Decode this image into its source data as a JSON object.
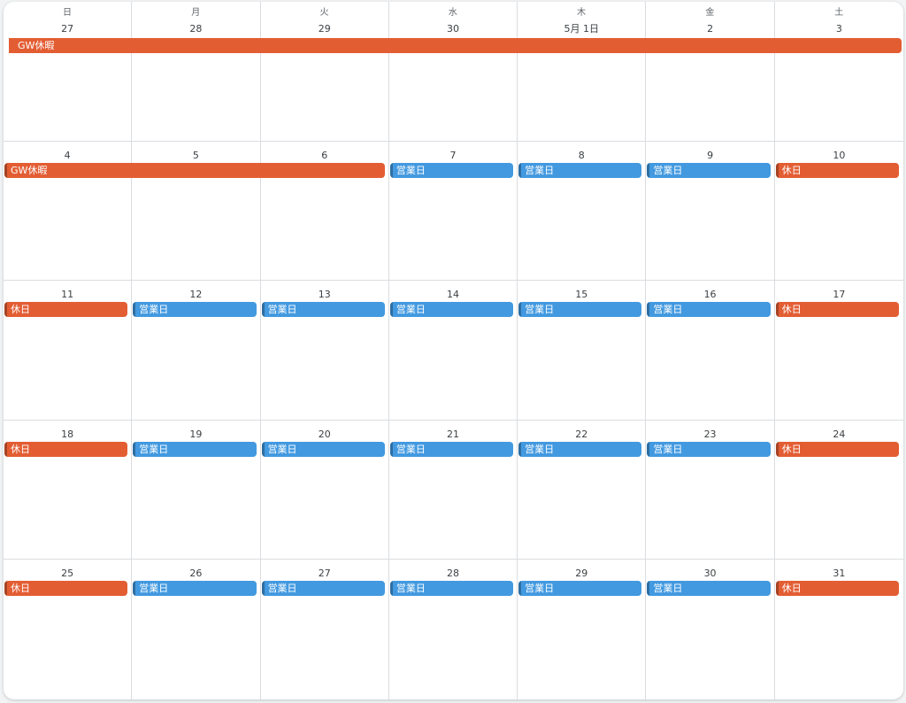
{
  "colors": {
    "holiday": "#e35d33",
    "business": "#4299e0",
    "border": "#dadce0",
    "background": "#ffffff"
  },
  "weekdays": [
    "日",
    "月",
    "火",
    "水",
    "木",
    "金",
    "土"
  ],
  "weeks": [
    {
      "days": [
        "27",
        "28",
        "29",
        "30",
        "5月 1日",
        "2",
        "3"
      ],
      "events": [
        {
          "title": "GW休暇",
          "type": "holiday",
          "start": 0,
          "span": 7,
          "continued": true
        }
      ]
    },
    {
      "days": [
        "4",
        "5",
        "6",
        "7",
        "8",
        "9",
        "10"
      ],
      "events": [
        {
          "title": "GW休暇",
          "type": "holiday",
          "start": 0,
          "span": 3,
          "continued": false
        },
        {
          "title": "営業日",
          "type": "business",
          "start": 3,
          "span": 1
        },
        {
          "title": "営業日",
          "type": "business",
          "start": 4,
          "span": 1
        },
        {
          "title": "営業日",
          "type": "business",
          "start": 5,
          "span": 1
        },
        {
          "title": "休日",
          "type": "holiday",
          "start": 6,
          "span": 1
        }
      ]
    },
    {
      "days": [
        "11",
        "12",
        "13",
        "14",
        "15",
        "16",
        "17"
      ],
      "events": [
        {
          "title": "休日",
          "type": "holiday",
          "start": 0,
          "span": 1
        },
        {
          "title": "営業日",
          "type": "business",
          "start": 1,
          "span": 1
        },
        {
          "title": "営業日",
          "type": "business",
          "start": 2,
          "span": 1
        },
        {
          "title": "営業日",
          "type": "business",
          "start": 3,
          "span": 1
        },
        {
          "title": "営業日",
          "type": "business",
          "start": 4,
          "span": 1
        },
        {
          "title": "営業日",
          "type": "business",
          "start": 5,
          "span": 1
        },
        {
          "title": "休日",
          "type": "holiday",
          "start": 6,
          "span": 1
        }
      ]
    },
    {
      "days": [
        "18",
        "19",
        "20",
        "21",
        "22",
        "23",
        "24"
      ],
      "events": [
        {
          "title": "休日",
          "type": "holiday",
          "start": 0,
          "span": 1
        },
        {
          "title": "営業日",
          "type": "business",
          "start": 1,
          "span": 1
        },
        {
          "title": "営業日",
          "type": "business",
          "start": 2,
          "span": 1
        },
        {
          "title": "営業日",
          "type": "business",
          "start": 3,
          "span": 1
        },
        {
          "title": "営業日",
          "type": "business",
          "start": 4,
          "span": 1
        },
        {
          "title": "営業日",
          "type": "business",
          "start": 5,
          "span": 1
        },
        {
          "title": "休日",
          "type": "holiday",
          "start": 6,
          "span": 1
        }
      ]
    },
    {
      "days": [
        "25",
        "26",
        "27",
        "28",
        "29",
        "30",
        "31"
      ],
      "events": [
        {
          "title": "休日",
          "type": "holiday",
          "start": 0,
          "span": 1
        },
        {
          "title": "営業日",
          "type": "business",
          "start": 1,
          "span": 1
        },
        {
          "title": "営業日",
          "type": "business",
          "start": 2,
          "span": 1
        },
        {
          "title": "営業日",
          "type": "business",
          "start": 3,
          "span": 1
        },
        {
          "title": "営業日",
          "type": "business",
          "start": 4,
          "span": 1
        },
        {
          "title": "営業日",
          "type": "business",
          "start": 5,
          "span": 1
        },
        {
          "title": "休日",
          "type": "holiday",
          "start": 6,
          "span": 1
        }
      ]
    }
  ]
}
